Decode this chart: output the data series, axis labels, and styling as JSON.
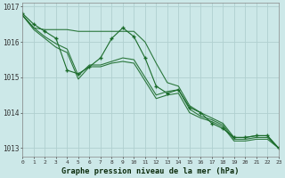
{
  "title": "Graphe pression niveau de la mer (hPa)",
  "bg_color": "#cce8e8",
  "grid_color": "#b0d0d0",
  "line_color": "#1a6b2a",
  "xlim": [
    0,
    23
  ],
  "ylim": [
    1012.75,
    1017.1
  ],
  "yticks": [
    1013,
    1014,
    1015,
    1016,
    1017
  ],
  "ytick_labels": [
    "1013",
    "1014",
    "1015",
    "1016",
    "1017"
  ],
  "xticks": [
    0,
    1,
    2,
    3,
    4,
    5,
    6,
    7,
    8,
    9,
    10,
    11,
    12,
    13,
    14,
    15,
    16,
    17,
    18,
    19,
    20,
    21,
    22,
    23
  ],
  "series_with_markers": [
    [
      1016.8,
      1016.5,
      1016.3,
      1016.1,
      1015.2,
      1015.1,
      1015.3,
      1015.55,
      1016.1,
      1016.4,
      1016.15,
      1015.55,
      1014.75,
      1014.55,
      1014.65,
      1014.15,
      1014.0,
      1013.7,
      1013.55,
      1013.3,
      1013.3,
      1013.35,
      1013.35,
      1013.0
    ]
  ],
  "series_plain": [
    [
      1016.75,
      1016.4,
      1016.35,
      1016.35,
      1016.35,
      1016.3,
      1016.3,
      1016.3,
      1016.3,
      1016.3,
      1016.3,
      1016.0,
      1015.4,
      1014.85,
      1014.75,
      1014.2,
      1014.0,
      1013.85,
      1013.7,
      1013.3,
      1013.3,
      1013.35,
      1013.35,
      1013.0
    ],
    [
      1016.75,
      1016.4,
      1016.15,
      1015.95,
      1015.8,
      1015.05,
      1015.35,
      1015.35,
      1015.45,
      1015.55,
      1015.5,
      1015.0,
      1014.5,
      1014.6,
      1014.65,
      1014.1,
      1013.9,
      1013.8,
      1013.65,
      1013.25,
      1013.25,
      1013.3,
      1013.3,
      1013.0
    ],
    [
      1016.75,
      1016.35,
      1016.1,
      1015.85,
      1015.7,
      1014.95,
      1015.3,
      1015.3,
      1015.4,
      1015.45,
      1015.4,
      1014.9,
      1014.4,
      1014.5,
      1014.55,
      1014.0,
      1013.85,
      1013.75,
      1013.6,
      1013.2,
      1013.2,
      1013.25,
      1013.25,
      1013.0
    ]
  ]
}
